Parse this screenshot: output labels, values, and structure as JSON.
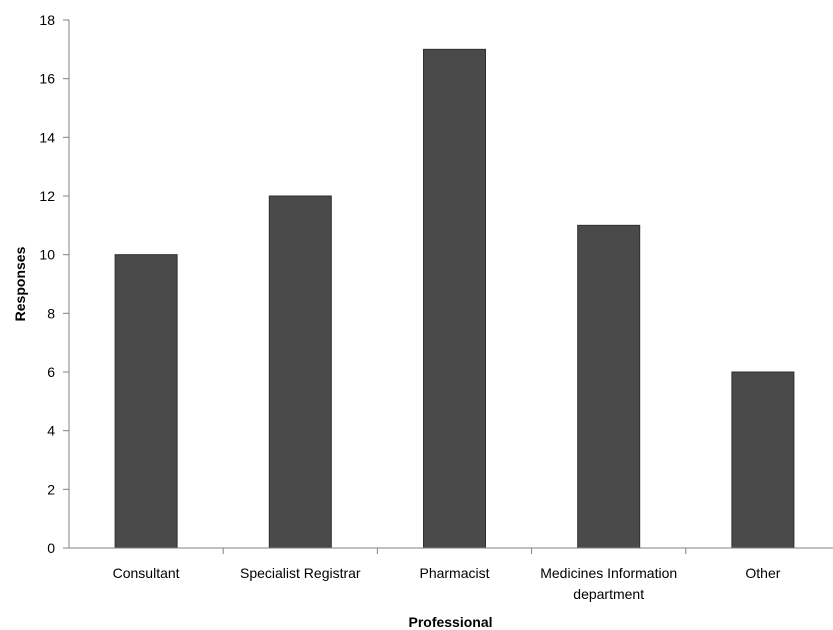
{
  "chart_data": {
    "type": "bar",
    "categories": [
      [
        "Consultant"
      ],
      [
        "Specialist Registrar"
      ],
      [
        "Pharmacist"
      ],
      [
        "Medicines Information",
        "department"
      ],
      [
        "Other"
      ]
    ],
    "values": [
      10,
      12,
      17,
      11,
      6
    ],
    "title": "",
    "xlabel": "Professional",
    "ylabel": "Responses",
    "ylim": [
      0,
      18
    ],
    "yticks": [
      0,
      2,
      4,
      6,
      8,
      10,
      12,
      14,
      16,
      18
    ],
    "grid": false,
    "legend": "none",
    "bar_color": "#4a4a4a",
    "axis_color": "#808080"
  }
}
